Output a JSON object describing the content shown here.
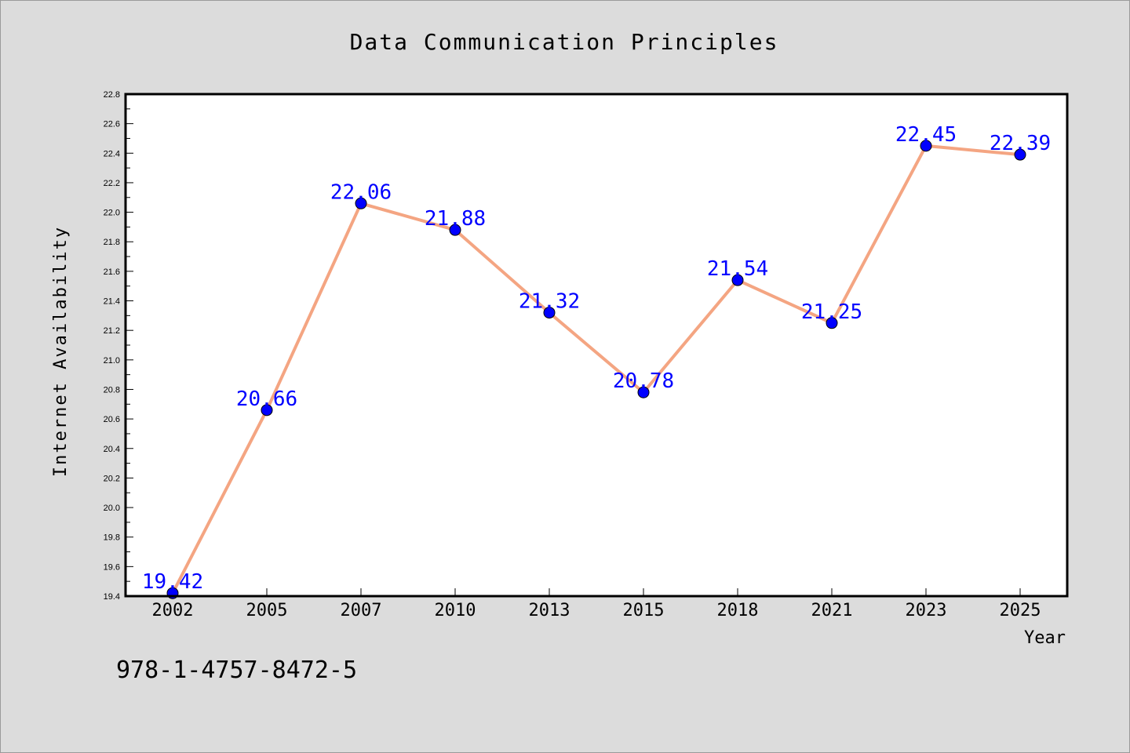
{
  "chart_data": {
    "type": "line",
    "title": "Data Communication Principles",
    "xlabel": "Year",
    "ylabel": "Internet Availability",
    "categories": [
      "2002",
      "2005",
      "2007",
      "2010",
      "2013",
      "2015",
      "2018",
      "2021",
      "2023",
      "2025"
    ],
    "series": [
      {
        "values": [
          19.42,
          20.66,
          22.06,
          21.88,
          21.32,
          20.78,
          21.54,
          21.25,
          22.45,
          22.39
        ],
        "data_labels": [
          "19.42",
          "20.66",
          "22.06",
          "21.88",
          "21.32",
          "20.78",
          "21.54",
          "21.25",
          "22.45",
          "22.39"
        ],
        "line_color": "#f4a582",
        "marker_color": "#0000ff"
      }
    ],
    "ylim": [
      19.4,
      22.8
    ],
    "yticks": [
      "19.4",
      "19.6",
      "19.8",
      "20.0",
      "20.2",
      "20.4",
      "20.6",
      "20.8",
      "21.0",
      "21.2",
      "21.4",
      "21.6",
      "21.8",
      "22.0",
      "22.2",
      "22.4",
      "22.6",
      "22.8"
    ],
    "grid": false,
    "label_color": "#0000ff",
    "background_color": "#dcdcdc",
    "plot_background_color": "#ffffff"
  },
  "footer": {
    "isbn": "978-1-4757-8472-5"
  }
}
